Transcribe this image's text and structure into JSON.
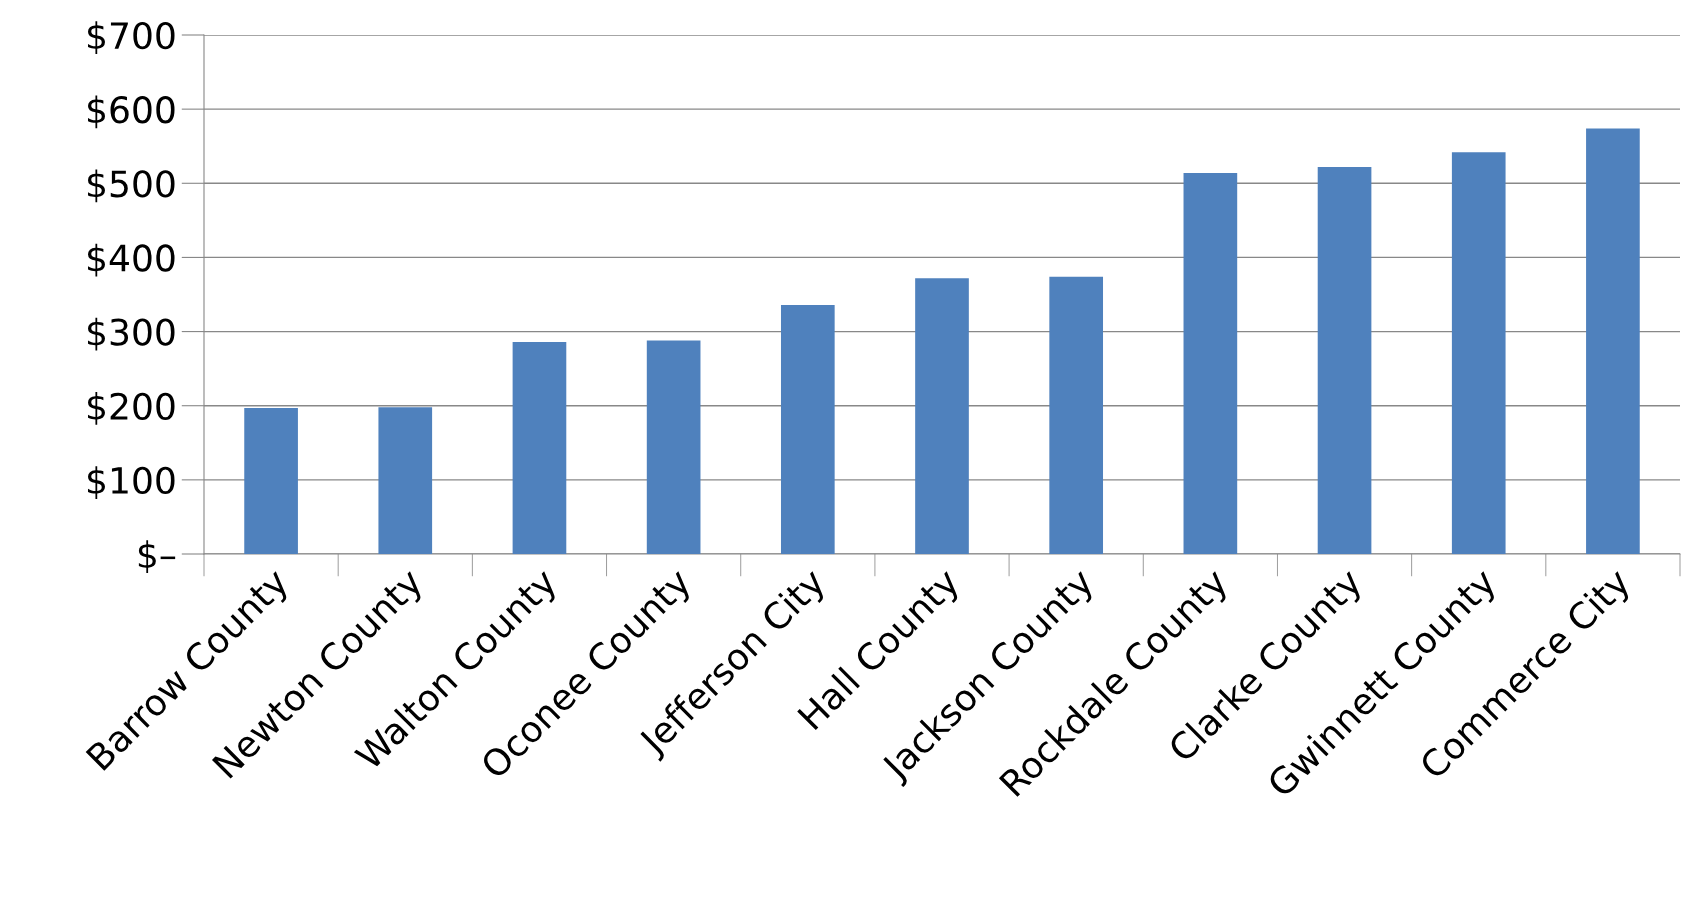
{
  "chart_data": {
    "type": "bar",
    "categories": [
      "Barrow County",
      "Newton County",
      "Walton County",
      "Oconee County",
      "Jefferson City",
      "Hall County",
      "Jackson County",
      "Rockdale County",
      "Clarke County",
      "Gwinnett County",
      "Commerce City"
    ],
    "values": [
      197,
      198,
      286,
      288,
      336,
      372,
      374,
      514,
      522,
      542,
      574
    ],
    "color": "#4f81bd",
    "ylim": [
      0,
      700
    ],
    "yticks": [
      {
        "value": 0,
        "label": "$–"
      },
      {
        "value": 100,
        "label": "$100"
      },
      {
        "value": 200,
        "label": "$200"
      },
      {
        "value": 300,
        "label": "$300"
      },
      {
        "value": 400,
        "label": "$400"
      },
      {
        "value": 500,
        "label": "$500"
      },
      {
        "value": 600,
        "label": "$600"
      },
      {
        "value": 700,
        "label": "$700"
      }
    ],
    "grid": "y"
  }
}
